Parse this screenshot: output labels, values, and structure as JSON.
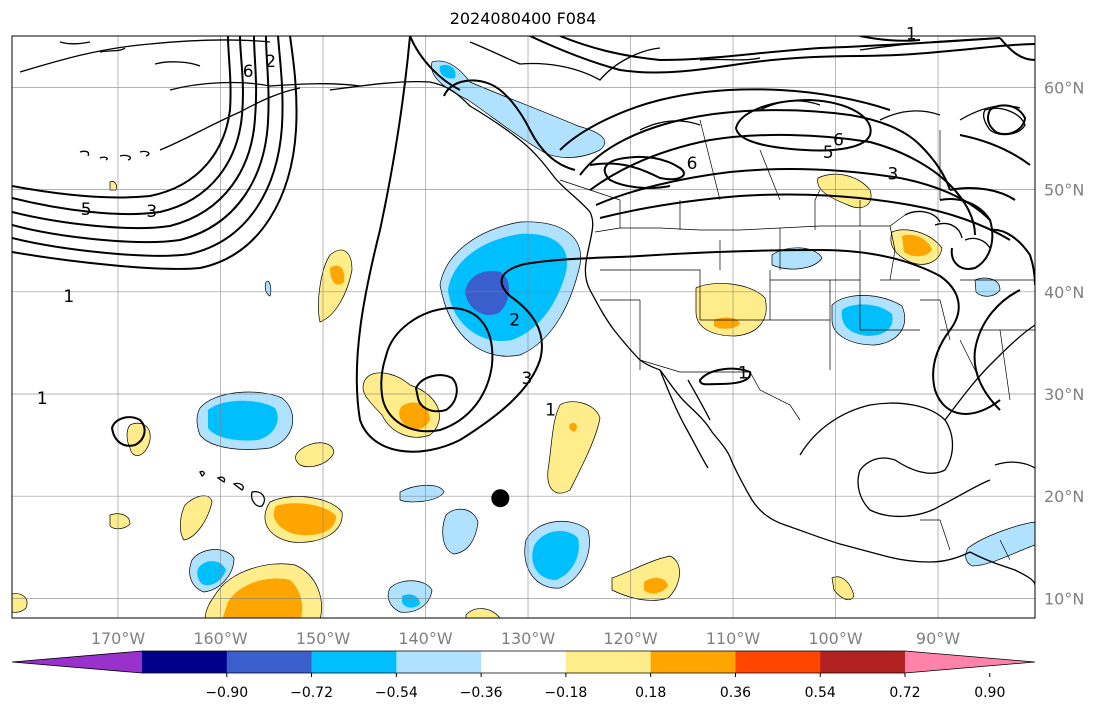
{
  "title": "2024080400 F084",
  "lon_ticks": [
    {
      "value": -170,
      "label": "170°W"
    },
    {
      "value": -160,
      "label": "160°W"
    },
    {
      "value": -150,
      "label": "150°W"
    },
    {
      "value": -140,
      "label": "140°W"
    },
    {
      "value": -130,
      "label": "130°W"
    },
    {
      "value": -120,
      "label": "120°W"
    },
    {
      "value": -110,
      "label": "110°W"
    },
    {
      "value": -100,
      "label": "100°W"
    },
    {
      "value": -90,
      "label": "90°W"
    }
  ],
  "lat_ticks": [
    {
      "value": 60,
      "label": "60°N"
    },
    {
      "value": 50,
      "label": "50°N"
    },
    {
      "value": 40,
      "label": "40°N"
    },
    {
      "value": 30,
      "label": "30°N"
    },
    {
      "value": 20,
      "label": "20°N"
    },
    {
      "value": 10,
      "label": "10°N"
    }
  ],
  "colorbar": {
    "colors": [
      "#9932cc",
      "#00008b",
      "#3a5fcd",
      "#00bfff",
      "#b0e2ff",
      "#ffffff",
      "#ffec8b",
      "#ffa500",
      "#ff4500",
      "#b22222",
      "#ff82ab"
    ],
    "labels": [
      "−0.90",
      "−0.72",
      "−0.54",
      "−0.36",
      "−0.18",
      "0.18",
      "0.36",
      "0.54",
      "0.72",
      "0.90"
    ]
  },
  "marker": {
    "lon": -132.7,
    "lat": 19.8
  },
  "contour_labels": [
    {
      "text": "1",
      "lon": -174.8,
      "lat": 39.0
    },
    {
      "text": "2",
      "lon": -131.3,
      "lat": 36.7
    },
    {
      "text": "3",
      "lon": -130.1,
      "lat": 31.0
    },
    {
      "text": "1",
      "lon": -127.8,
      "lat": 27.9
    },
    {
      "text": "1",
      "lon": -109.0,
      "lat": 31.5
    },
    {
      "text": "5",
      "lon": -100.7,
      "lat": 53.1
    },
    {
      "text": "6",
      "lon": -99.7,
      "lat": 54.3
    },
    {
      "text": "6",
      "lon": -114.0,
      "lat": 52.0
    },
    {
      "text": "3",
      "lon": -94.4,
      "lat": 51.0
    },
    {
      "text": "1",
      "lon": -92.6,
      "lat": 64.7
    },
    {
      "text": "6",
      "lon": -157.3,
      "lat": 61.0
    },
    {
      "text": "2",
      "lon": -155.1,
      "lat": 62.0
    },
    {
      "text": "5",
      "lon": -173.1,
      "lat": 47.5
    },
    {
      "text": "3",
      "lon": -166.7,
      "lat": 47.3
    },
    {
      "text": "1",
      "lon": -177.4,
      "lat": 29.0
    }
  ]
}
